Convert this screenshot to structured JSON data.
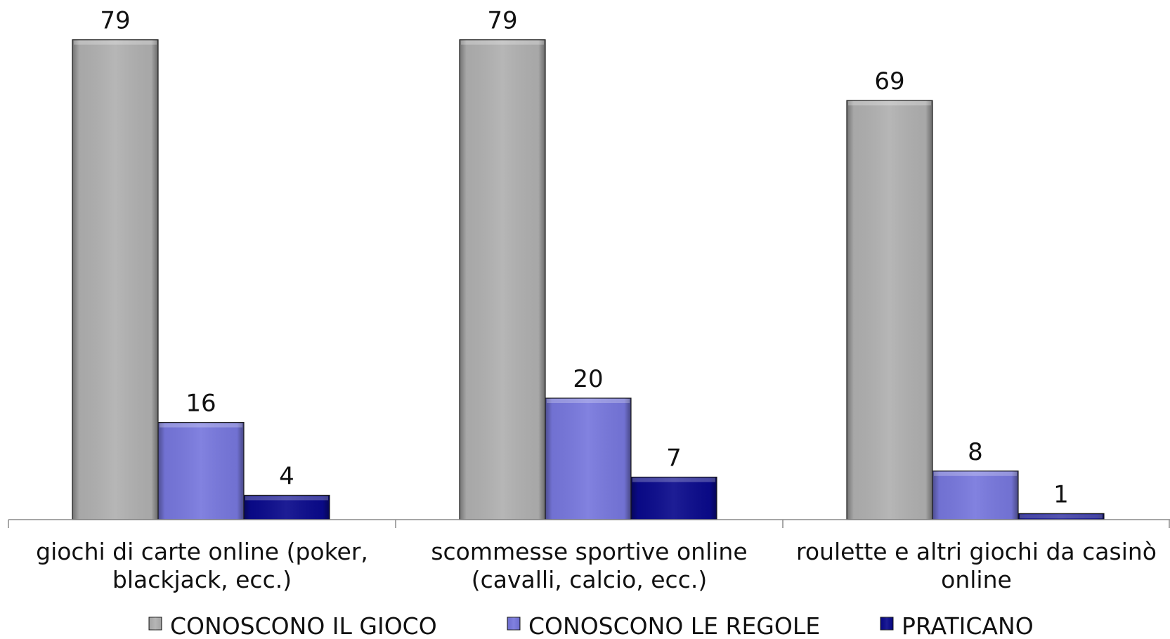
{
  "chart_data": {
    "type": "bar",
    "title": "",
    "xlabel": "",
    "ylabel": "",
    "ylim": [
      0,
      80
    ],
    "grid": false,
    "legend_position": "bottom",
    "categories": [
      [
        "giochi di carte online (poker,",
        "blackjack, ecc.)"
      ],
      [
        "scommesse sportive online",
        "(cavalli, calcio, ecc.)"
      ],
      [
        "roulette e altri giochi da casinò",
        "online"
      ]
    ],
    "series": [
      {
        "name": "CONOSCONO IL GIOCO",
        "values": [
          79,
          79,
          69
        ],
        "color": "#b0b0b0"
      },
      {
        "name": "CONOSCONO LE REGOLE",
        "values": [
          16,
          20,
          8
        ],
        "color": "#7777dd"
      },
      {
        "name": "PRATICANO",
        "values": [
          4,
          7,
          1
        ],
        "color": "#0a0a8c"
      }
    ]
  }
}
